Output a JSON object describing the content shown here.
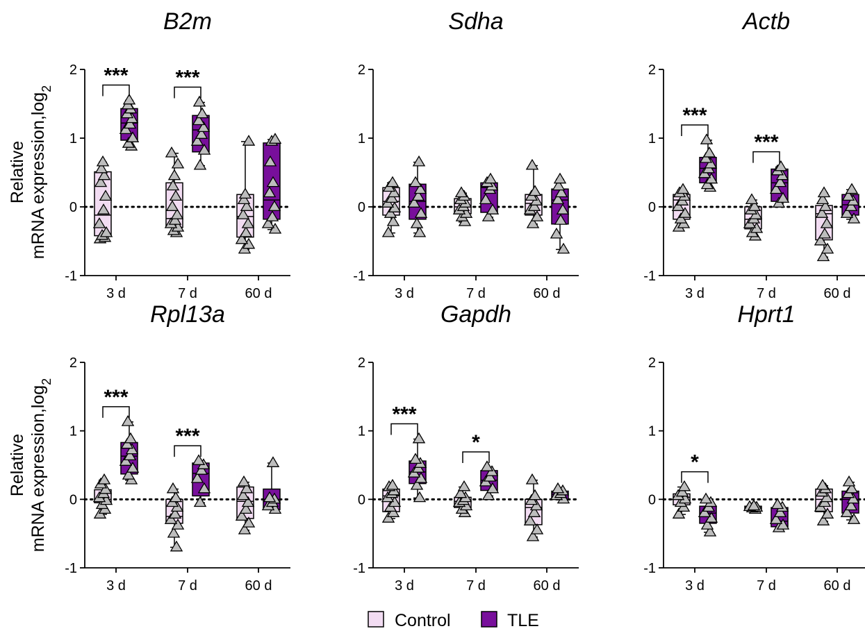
{
  "chart_data": {
    "type": "box",
    "ylabel_line1": "Relative",
    "ylabel_line2": "mRNA expression,log",
    "ylabel_sub": "2",
    "yticks": [
      "-1",
      "0",
      "1",
      "2"
    ],
    "ylim": [
      -1,
      2
    ],
    "categories": [
      "3 d",
      "7 d",
      "60 d"
    ],
    "reference_line": 0,
    "legend": {
      "items": [
        {
          "name": "Control",
          "color": "#f2dcf2"
        },
        {
          "name": "TLE",
          "color": "#780f9b"
        }
      ],
      "position": "bottom-center"
    },
    "panels": [
      {
        "title": "B2m",
        "boxes": [
          [
            {
              "group": "Control",
              "q1": -0.42,
              "median": -0.12,
              "q3": 0.51,
              "min": -0.47,
              "max": 0.65,
              "points": [
                -0.47,
                -0.45,
                -0.42,
                -0.38,
                -0.25,
                -0.05,
                0.15,
                0.35,
                0.45,
                0.55,
                0.65
              ]
            },
            {
              "group": "TLE",
              "q1": 0.97,
              "median": 1.22,
              "q3": 1.43,
              "min": 0.88,
              "max": 1.55,
              "points": [
                0.88,
                0.92,
                1.0,
                1.12,
                1.2,
                1.28,
                1.35,
                1.42,
                1.48,
                1.55
              ]
            }
          ],
          [
            {
              "group": "Control",
              "q1": -0.3,
              "median": -0.17,
              "q3": 0.35,
              "min": -0.38,
              "max": 0.78,
              "points": [
                -0.38,
                -0.35,
                -0.3,
                -0.25,
                -0.2,
                -0.12,
                0.0,
                0.15,
                0.3,
                0.45,
                0.62,
                0.78
              ]
            },
            {
              "group": "TLE",
              "q1": 0.8,
              "median": 1.12,
              "q3": 1.33,
              "min": 0.6,
              "max": 1.52,
              "points": [
                0.6,
                0.82,
                0.95,
                1.05,
                1.15,
                1.25,
                1.35,
                1.52
              ]
            }
          ],
          [
            {
              "group": "Control",
              "q1": -0.44,
              "median": -0.14,
              "q3": 0.18,
              "min": -0.62,
              "max": 0.95,
              "points": [
                -0.62,
                -0.55,
                -0.48,
                -0.38,
                -0.25,
                -0.12,
                0.0,
                0.1,
                0.18,
                0.95
              ]
            },
            {
              "group": "TLE",
              "q1": -0.18,
              "median": 0.1,
              "q3": 0.93,
              "min": -0.33,
              "max": 0.98,
              "points": [
                -0.33,
                -0.25,
                -0.15,
                0.0,
                0.2,
                0.35,
                0.65,
                0.95,
                0.98
              ]
            }
          ]
        ],
        "significance": [
          {
            "group": "3 d",
            "label": "***"
          },
          {
            "group": "7 d",
            "label": "***"
          }
        ]
      },
      {
        "title": "Sdha",
        "boxes": [
          [
            {
              "group": "Control",
              "q1": -0.12,
              "median": 0.08,
              "q3": 0.28,
              "min": -0.38,
              "max": 0.35,
              "points": [
                -0.38,
                -0.22,
                -0.1,
                -0.02,
                0.05,
                0.12,
                0.2,
                0.28,
                0.35
              ]
            },
            {
              "group": "TLE",
              "q1": -0.18,
              "median": 0.08,
              "q3": 0.33,
              "min": -0.38,
              "max": 0.65,
              "points": [
                -0.38,
                -0.25,
                -0.1,
                0.05,
                0.15,
                0.25,
                0.35,
                0.65
              ]
            }
          ],
          [
            {
              "group": "Control",
              "q1": -0.1,
              "median": 0.0,
              "q3": 0.12,
              "min": -0.22,
              "max": 0.2,
              "points": [
                -0.22,
                -0.15,
                -0.1,
                -0.05,
                0.0,
                0.05,
                0.1,
                0.15,
                0.2
              ]
            },
            {
              "group": "TLE",
              "q1": -0.08,
              "median": 0.28,
              "q3": 0.35,
              "min": -0.15,
              "max": 0.4,
              "points": [
                -0.15,
                -0.05,
                0.1,
                0.25,
                0.3,
                0.35,
                0.4
              ]
            }
          ],
          [
            {
              "group": "Control",
              "q1": -0.12,
              "median": 0.05,
              "q3": 0.18,
              "min": -0.25,
              "max": 0.6,
              "points": [
                -0.25,
                -0.15,
                -0.05,
                0.0,
                0.08,
                0.15,
                0.22,
                0.6
              ]
            },
            {
              "group": "TLE",
              "q1": -0.25,
              "median": 0.1,
              "q3": 0.26,
              "min": -0.62,
              "max": 0.4,
              "points": [
                -0.62,
                -0.4,
                -0.2,
                -0.05,
                0.1,
                0.2,
                0.3,
                0.4
              ]
            }
          ]
        ],
        "significance": []
      },
      {
        "title": "Actb",
        "boxes": [
          [
            {
              "group": "Control",
              "q1": -0.18,
              "median": 0.1,
              "q3": 0.18,
              "min": -0.3,
              "max": 0.25,
              "points": [
                -0.3,
                -0.25,
                -0.18,
                -0.1,
                0.0,
                0.08,
                0.15,
                0.2,
                0.25
              ]
            },
            {
              "group": "TLE",
              "q1": 0.35,
              "median": 0.56,
              "q3": 0.72,
              "min": 0.28,
              "max": 0.97,
              "points": [
                0.28,
                0.32,
                0.4,
                0.48,
                0.55,
                0.62,
                0.7,
                0.78,
                0.97
              ]
            }
          ],
          [
            {
              "group": "Control",
              "q1": -0.32,
              "median": -0.18,
              "q3": 0.0,
              "min": -0.43,
              "max": 0.1,
              "points": [
                -0.43,
                -0.38,
                -0.32,
                -0.25,
                -0.18,
                -0.12,
                -0.05,
                0.0,
                0.1
              ]
            },
            {
              "group": "TLE",
              "q1": 0.08,
              "median": 0.35,
              "q3": 0.55,
              "min": 0.05,
              "max": 0.58,
              "points": [
                0.05,
                0.12,
                0.25,
                0.35,
                0.45,
                0.52,
                0.58
              ]
            }
          ],
          [
            {
              "group": "Control",
              "q1": -0.48,
              "median": -0.1,
              "q3": 0.02,
              "min": -0.73,
              "max": 0.2,
              "points": [
                -0.73,
                -0.62,
                -0.5,
                -0.4,
                -0.25,
                -0.1,
                0.0,
                0.1,
                0.2
              ]
            },
            {
              "group": "TLE",
              "q1": -0.12,
              "median": 0.03,
              "q3": 0.18,
              "min": -0.18,
              "max": 0.25,
              "points": [
                -0.18,
                -0.1,
                0.0,
                0.08,
                0.15,
                0.25
              ]
            }
          ]
        ],
        "significance": [
          {
            "group": "3 d",
            "label": "***"
          },
          {
            "group": "7 d",
            "label": "***"
          }
        ]
      },
      {
        "title": "Rpl13a",
        "boxes": [
          [
            {
              "group": "Control",
              "q1": -0.05,
              "median": 0.0,
              "q3": 0.14,
              "min": -0.22,
              "max": 0.28,
              "points": [
                -0.22,
                -0.15,
                -0.08,
                -0.02,
                0.02,
                0.08,
                0.14,
                0.22,
                0.28
              ]
            },
            {
              "group": "TLE",
              "q1": 0.37,
              "median": 0.63,
              "q3": 0.83,
              "min": 0.28,
              "max": 1.13,
              "points": [
                0.28,
                0.35,
                0.45,
                0.55,
                0.63,
                0.72,
                0.8,
                0.88,
                1.13
              ]
            }
          ],
          [
            {
              "group": "Control",
              "q1": -0.35,
              "median": -0.25,
              "q3": 0.0,
              "min": -0.7,
              "max": 0.15,
              "points": [
                -0.7,
                -0.5,
                -0.38,
                -0.3,
                -0.22,
                -0.12,
                -0.05,
                0.02,
                0.15
              ]
            },
            {
              "group": "TLE",
              "q1": 0.05,
              "median": 0.38,
              "q3": 0.53,
              "min": -0.05,
              "max": 0.56,
              "points": [
                -0.05,
                0.15,
                0.3,
                0.42,
                0.5,
                0.56
              ]
            }
          ],
          [
            {
              "group": "Control",
              "q1": -0.28,
              "median": -0.03,
              "q3": 0.18,
              "min": -0.45,
              "max": 0.25,
              "points": [
                -0.45,
                -0.35,
                -0.25,
                -0.15,
                -0.05,
                0.05,
                0.15,
                0.25
              ]
            },
            {
              "group": "TLE",
              "q1": -0.15,
              "median": 0.0,
              "q3": 0.15,
              "min": -0.15,
              "max": 0.53,
              "points": [
                -0.15,
                -0.1,
                -0.05,
                0.0,
                0.02,
                0.53
              ]
            }
          ]
        ],
        "significance": [
          {
            "group": "3 d",
            "label": "***"
          },
          {
            "group": "7 d",
            "label": "***"
          }
        ]
      },
      {
        "title": "Gapdh",
        "boxes": [
          [
            {
              "group": "Control",
              "q1": -0.18,
              "median": 0.05,
              "q3": 0.15,
              "min": -0.28,
              "max": 0.2,
              "points": [
                -0.28,
                -0.2,
                -0.12,
                -0.05,
                0.02,
                0.08,
                0.12,
                0.18,
                0.2
              ]
            },
            {
              "group": "TLE",
              "q1": 0.23,
              "median": 0.4,
              "q3": 0.56,
              "min": 0.02,
              "max": 0.88,
              "points": [
                0.02,
                0.2,
                0.3,
                0.38,
                0.45,
                0.52,
                0.58,
                0.88
              ]
            }
          ],
          [
            {
              "group": "Control",
              "q1": -0.12,
              "median": -0.03,
              "q3": 0.03,
              "min": -0.2,
              "max": 0.18,
              "points": [
                -0.2,
                -0.15,
                -0.1,
                -0.05,
                -0.02,
                0.02,
                0.08,
                0.18
              ]
            },
            {
              "group": "TLE",
              "q1": 0.13,
              "median": 0.28,
              "q3": 0.42,
              "min": 0.05,
              "max": 0.47,
              "points": [
                0.05,
                0.15,
                0.25,
                0.32,
                0.4,
                0.47
              ]
            }
          ],
          [
            {
              "group": "Control",
              "q1": -0.37,
              "median": -0.12,
              "q3": 0.0,
              "min": -0.55,
              "max": 0.28,
              "points": [
                -0.55,
                -0.45,
                -0.32,
                -0.2,
                -0.1,
                -0.02,
                0.05,
                0.28
              ]
            },
            {
              "group": "TLE",
              "q1": 0.0,
              "median": 0.07,
              "q3": 0.12,
              "min": 0.0,
              "max": 0.15,
              "points": [
                0.0,
                0.05,
                0.08,
                0.12,
                0.15
              ]
            }
          ]
        ],
        "significance": [
          {
            "group": "3 d",
            "label": "***"
          },
          {
            "group": "7 d",
            "label": "*"
          }
        ]
      },
      {
        "title": "Hprt1",
        "boxes": [
          [
            {
              "group": "Control",
              "q1": -0.08,
              "median": 0.03,
              "q3": 0.08,
              "min": -0.22,
              "max": 0.18,
              "points": [
                -0.22,
                -0.12,
                -0.05,
                0.0,
                0.05,
                0.1,
                0.18
              ]
            },
            {
              "group": "TLE",
              "q1": -0.35,
              "median": -0.2,
              "q3": -0.1,
              "min": -0.48,
              "max": 0.0,
              "points": [
                -0.48,
                -0.38,
                -0.28,
                -0.2,
                -0.12,
                -0.05,
                0.0
              ]
            }
          ],
          [
            {
              "group": "Control",
              "q1": -0.14,
              "median": -0.12,
              "q3": -0.1,
              "min": -0.15,
              "max": -0.1,
              "points": [
                -0.15,
                -0.13,
                -0.12,
                -0.11,
                -0.1
              ]
            },
            {
              "group": "TLE",
              "q1": -0.4,
              "median": -0.32,
              "q3": -0.12,
              "min": -0.42,
              "max": -0.08,
              "points": [
                -0.42,
                -0.38,
                -0.3,
                -0.2,
                -0.12,
                -0.08
              ]
            }
          ],
          [
            {
              "group": "Control",
              "q1": -0.18,
              "median": 0.0,
              "q3": 0.15,
              "min": -0.32,
              "max": 0.2,
              "points": [
                -0.32,
                -0.22,
                -0.12,
                -0.05,
                0.02,
                0.1,
                0.15,
                0.2
              ]
            },
            {
              "group": "TLE",
              "q1": -0.2,
              "median": 0.0,
              "q3": 0.12,
              "min": -0.3,
              "max": 0.25,
              "points": [
                -0.3,
                -0.2,
                -0.1,
                0.0,
                0.08,
                0.15,
                0.25
              ]
            }
          ]
        ],
        "significance": [
          {
            "group": "3 d",
            "label": "*"
          }
        ]
      }
    ]
  }
}
